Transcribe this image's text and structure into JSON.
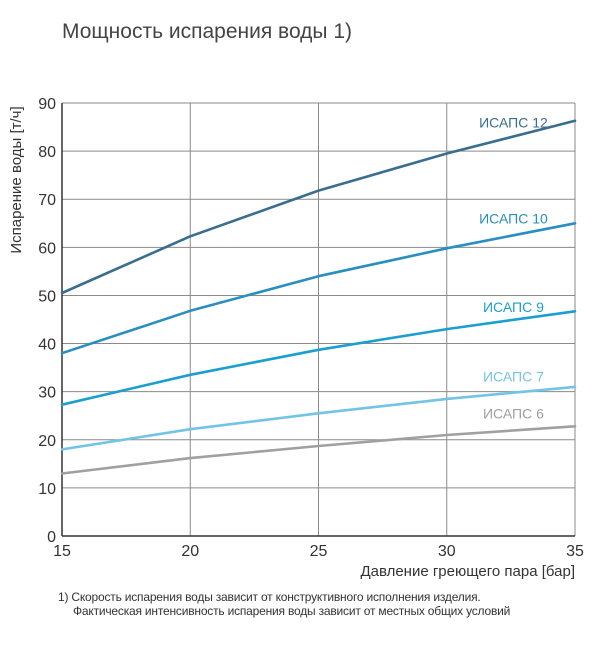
{
  "chart_data": {
    "type": "line",
    "title": "Мощность испарения воды 1)",
    "xlabel": "Давление греющего пара [бар]",
    "ylabel": "Испарение воды [т/ч]",
    "xlim": [
      15,
      35
    ],
    "ylim": [
      0,
      90
    ],
    "x_ticks": [
      "15",
      "20",
      "25",
      "30",
      "35"
    ],
    "y_ticks": [
      "0",
      "10",
      "20",
      "30",
      "40",
      "50",
      "60",
      "70",
      "80",
      "90"
    ],
    "grid": true,
    "x": [
      15,
      20,
      25,
      30,
      35
    ],
    "series": [
      {
        "name": "ИСАПС 12",
        "color": "#3a6e8f",
        "values": [
          50.5,
          62.3,
          71.8,
          79.5,
          86.3
        ]
      },
      {
        "name": "ИСАПС 10",
        "color": "#2a8ec0",
        "values": [
          38.0,
          46.8,
          54.0,
          59.8,
          65.0
        ]
      },
      {
        "name": "ИСАПС 9",
        "color": "#1a9fcf",
        "values": [
          27.3,
          33.5,
          38.7,
          43.0,
          46.7
        ]
      },
      {
        "name": "ИСАПС 7",
        "color": "#72c4e6",
        "values": [
          18.0,
          22.2,
          25.5,
          28.5,
          31.0
        ]
      },
      {
        "name": "ИСАПС 6",
        "color": "#a0a0a0",
        "values": [
          13.0,
          16.2,
          18.7,
          21.0,
          22.8
        ]
      }
    ]
  },
  "footnote": {
    "line1": "1) Скорость испарения воды зависит от конструктивного исполнения изделия.",
    "line2": "Фактическая интенсивность испарения воды зависит от местных общих условий"
  }
}
